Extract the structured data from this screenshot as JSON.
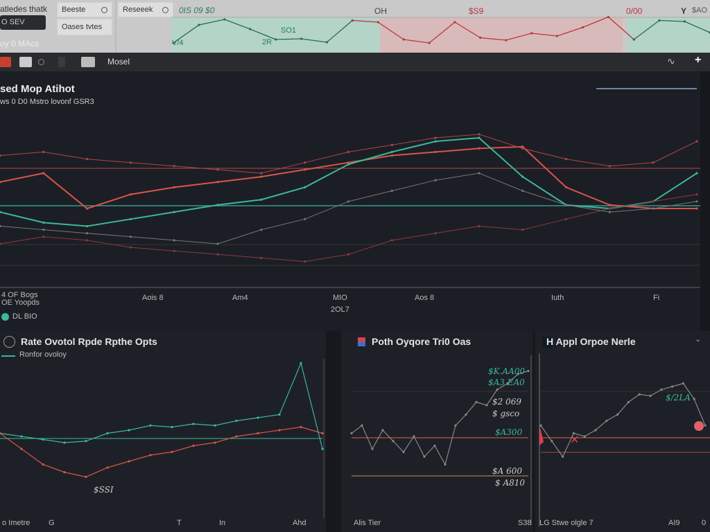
{
  "colors": {
    "accent_green": "#2f9a78",
    "accent_red": "#d9434b",
    "teal": "#3bb89a",
    "panel_bg": "#1e2027",
    "top_bg": "#c9c9c9"
  },
  "top": {
    "left_title": "atledes thatk",
    "dark_button": "O SEV",
    "left_caption": "oy 0 MAcs",
    "search1": "Beeste",
    "search2": "Reseeek",
    "filter": "Oases tvtes",
    "chart_labels": [
      "0IS 09 $0",
      "SO1",
      "2R",
      "V/4",
      "OH",
      "$S9",
      "0/00",
      "Y",
      "$AO"
    ],
    "chart": {
      "type": "line",
      "values": [
        20,
        72,
        88,
        60,
        30,
        32,
        22,
        85,
        80,
        30,
        20,
        80,
        35,
        28,
        48,
        40,
        65,
        95,
        30,
        85,
        82,
        50
      ]
    }
  },
  "toolbar": {
    "model_label": "Mosel",
    "icons": [
      "red-tab-icon",
      "minus-icon",
      "circle-icon",
      "grid-icon",
      "window-icon",
      "wave-icon",
      "plus-icon"
    ]
  },
  "main": {
    "title": "sed Mop Atihot",
    "subtitle": "ws 0 D0 Mstro lovonf GSR3",
    "x_ticks": [
      "Aois 8",
      "Am4",
      "MIO",
      "Aos 8",
      "Iuth",
      "Fi"
    ],
    "x_sublabel": "2OL7",
    "y_caption_1": "4 OF Bogs",
    "y_caption_2": "OE Yoopds",
    "legend": "DL BIO",
    "chart_data": {
      "type": "line",
      "series": [
        {
          "color": "#d9544b",
          "values": [
            55,
            60,
            40,
            48,
            52,
            55,
            58,
            62,
            66,
            70,
            72,
            74,
            75,
            52,
            42,
            40,
            40
          ]
        },
        {
          "color": "#3bb89a",
          "values": [
            38,
            32,
            30,
            34,
            38,
            42,
            45,
            52,
            65,
            72,
            78,
            80,
            58,
            42,
            40,
            44,
            60
          ]
        },
        {
          "color": "#b0474a",
          "values": [
            70,
            72,
            68,
            66,
            64,
            62,
            60,
            66,
            72,
            76,
            80,
            82,
            74,
            68,
            64,
            66,
            78
          ]
        },
        {
          "color": "#8a3a40",
          "values": [
            20,
            24,
            22,
            18,
            16,
            14,
            12,
            10,
            14,
            22,
            26,
            30,
            28,
            34,
            40,
            44,
            48
          ]
        },
        {
          "color": "#777",
          "values": [
            30,
            28,
            26,
            24,
            22,
            20,
            28,
            34,
            44,
            50,
            56,
            60,
            50,
            42,
            38,
            40,
            44
          ]
        }
      ]
    }
  },
  "panels": [
    {
      "title": "Rate Ovotol Rpde Rpthe Opts",
      "legend": "Ronfor ovoloy",
      "value_label": "$SSI",
      "x_ticks": [
        "o Imetre",
        "G",
        "T",
        "In",
        "Ahd"
      ],
      "series": [
        {
          "color": "#3bb89a",
          "values": [
            50,
            48,
            46,
            44,
            45,
            50,
            52,
            55,
            54,
            56,
            55,
            58,
            60,
            62,
            95,
            40
          ]
        },
        {
          "color": "#d9544b",
          "values": [
            50,
            40,
            30,
            25,
            22,
            28,
            32,
            36,
            38,
            42,
            44,
            48,
            50,
            52,
            54,
            50
          ]
        }
      ]
    },
    {
      "title": "Poth Oyqore Tri0 Oas",
      "value_labels": [
        "$K.AA00",
        "$A3.EA0",
        "$2 069",
        "$ gsco",
        "$A300",
        "$A 600",
        "$ A810"
      ],
      "x_ticks": [
        "Alis Tier",
        "S38"
      ],
      "series": [
        {
          "color": "#888",
          "values": [
            50,
            55,
            40,
            52,
            45,
            38,
            48,
            35,
            42,
            30,
            55,
            62,
            70,
            68,
            78,
            82,
            88,
            90
          ]
        }
      ]
    },
    {
      "title": "H Appl Orpoe Nerle",
      "value_label": "$/2LA",
      "x_ticks": [
        "LG Stwe olgle 7",
        "AI9",
        "0"
      ],
      "series": [
        {
          "color": "#888",
          "values": [
            55,
            45,
            35,
            50,
            48,
            52,
            58,
            62,
            70,
            75,
            74,
            78,
            80,
            82,
            72,
            55
          ]
        }
      ]
    }
  ]
}
